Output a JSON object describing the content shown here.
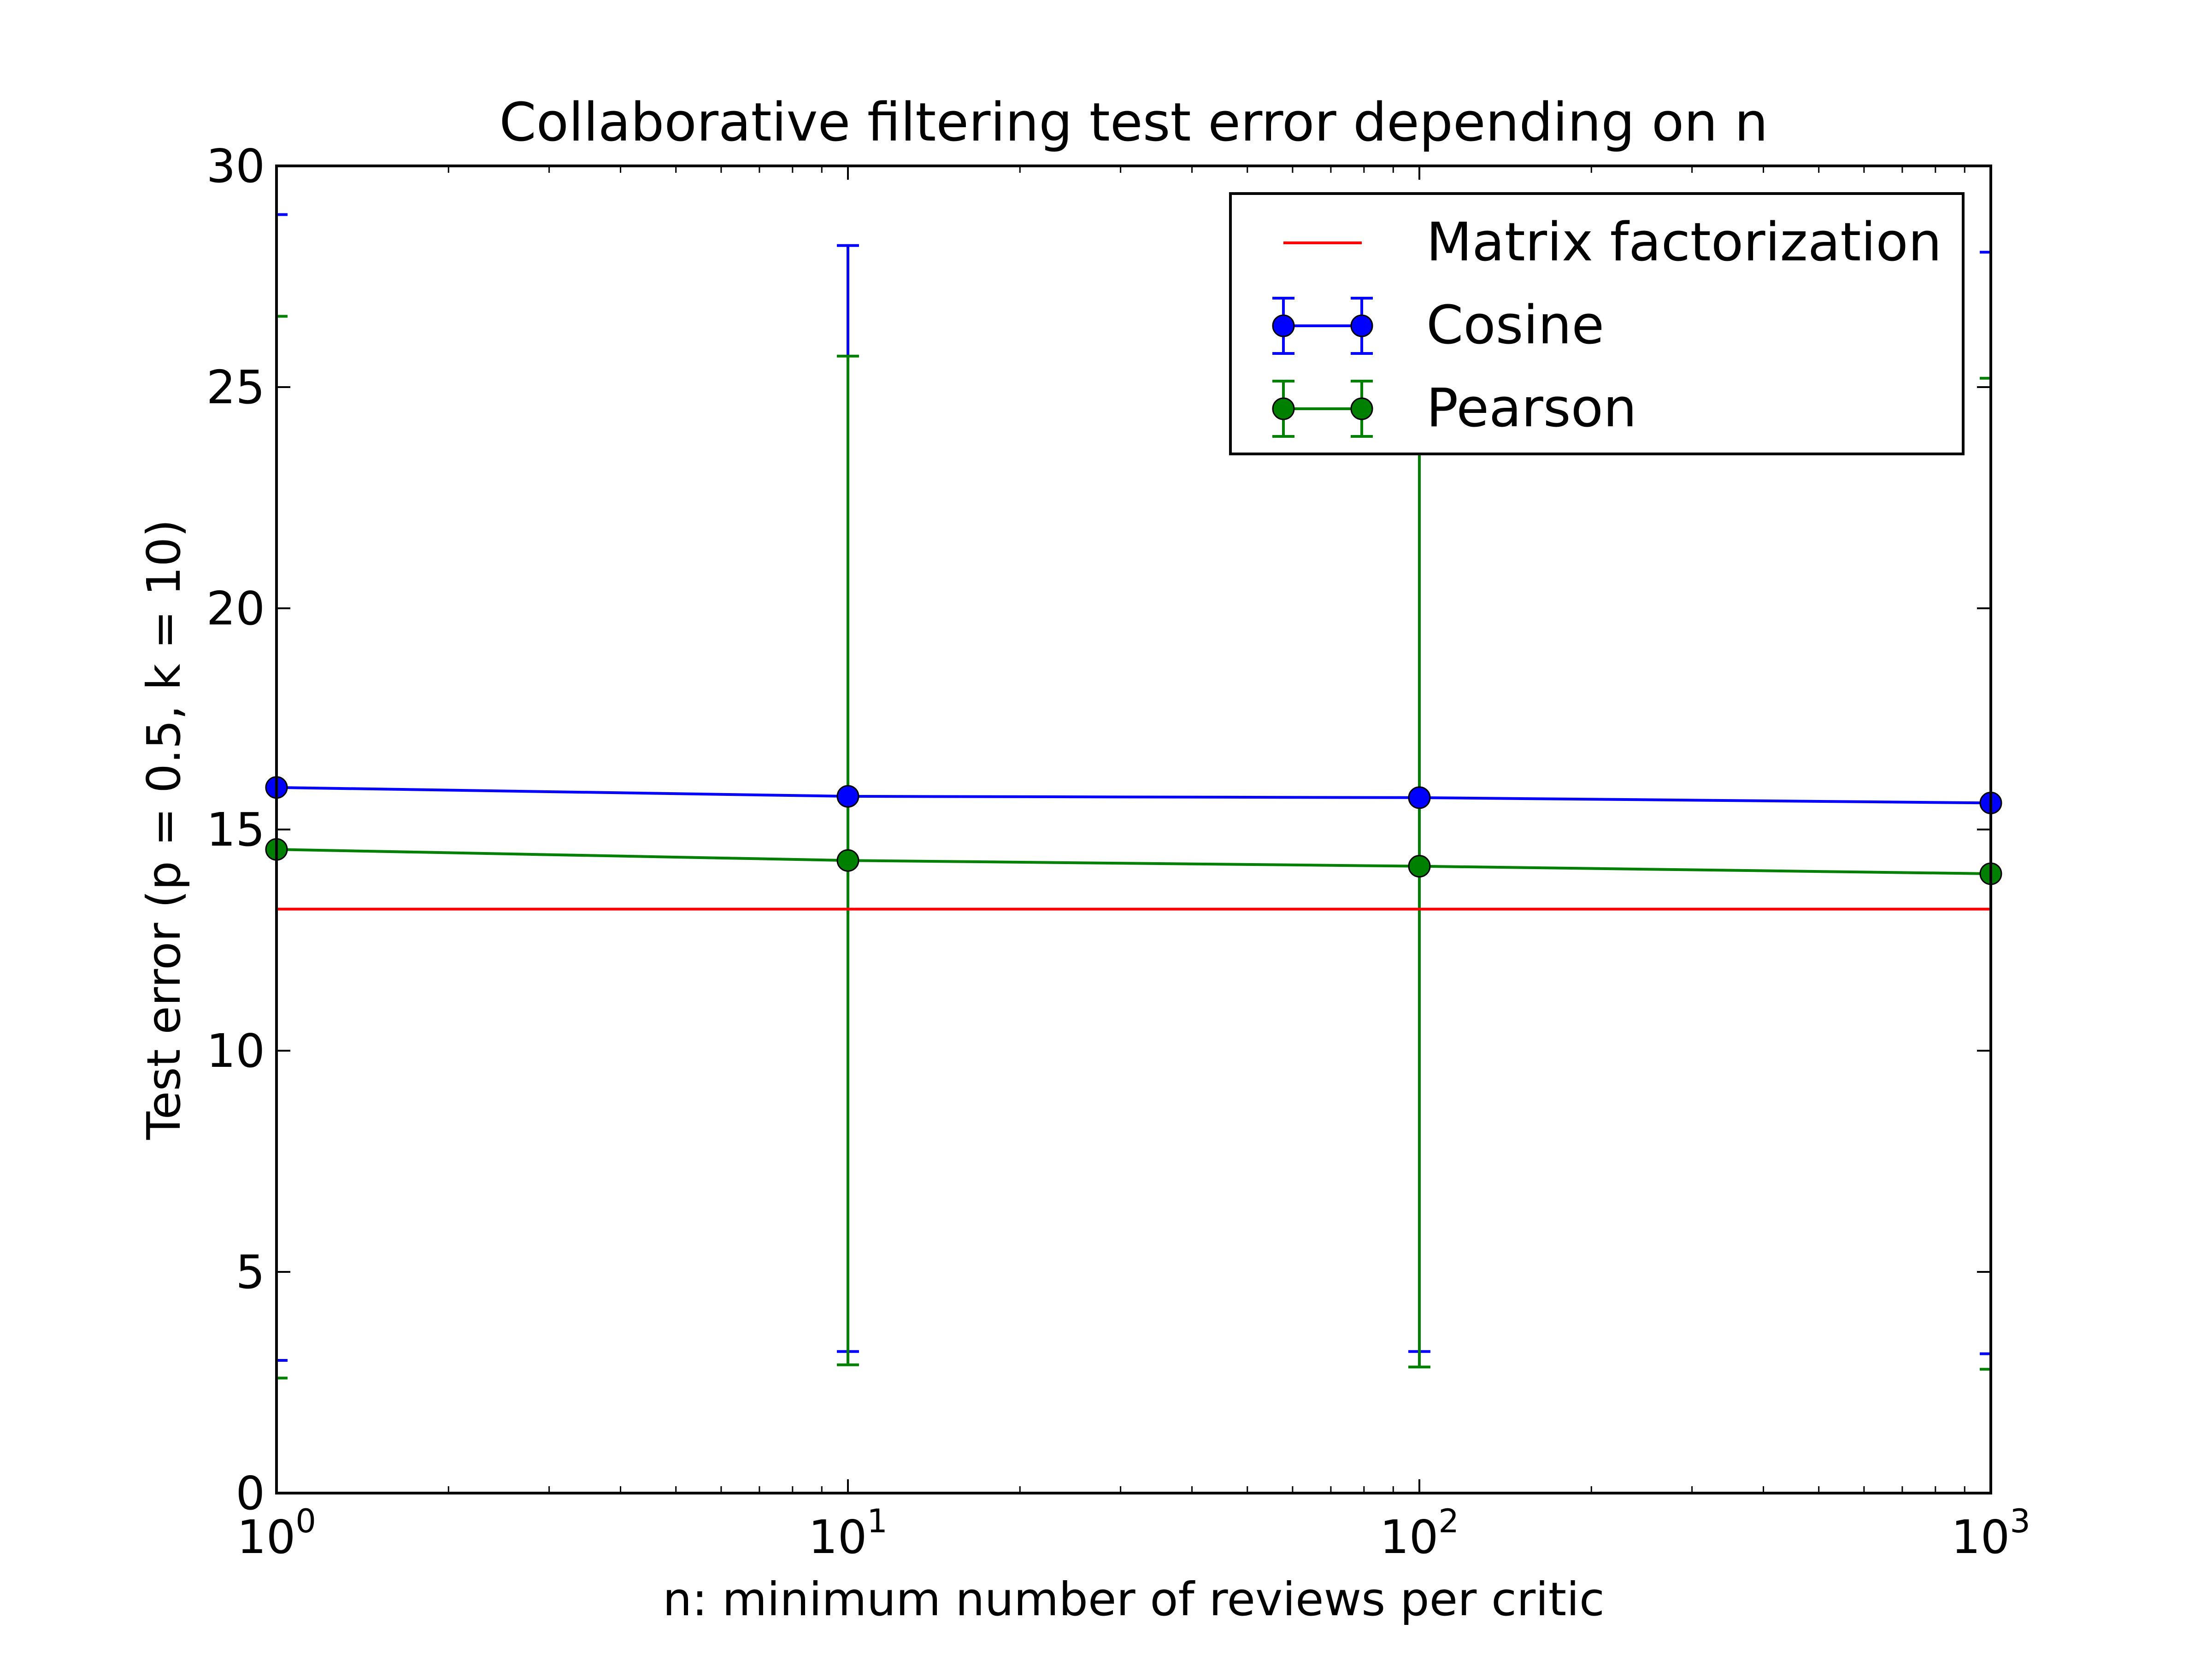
{
  "chart_data": {
    "type": "line",
    "title": "Collaborative filtering test error depending on n",
    "xlabel": "n: minimum number of reviews per critic",
    "ylabel": "Test error (p = 0.5, k = 10)",
    "xscale": "log",
    "xlim": [
      1,
      1000
    ],
    "ylim": [
      0,
      30
    ],
    "grid": false,
    "legend_position": "top-right",
    "x_ticks": [
      {
        "value": 1,
        "base": "10",
        "exp": "0"
      },
      {
        "value": 10,
        "base": "10",
        "exp": "1"
      },
      {
        "value": 100,
        "base": "10",
        "exp": "2"
      },
      {
        "value": 1000,
        "base": "10",
        "exp": "3"
      }
    ],
    "y_ticks": [
      0,
      5,
      10,
      15,
      20,
      25,
      30
    ],
    "x": [
      1,
      10,
      100,
      1000
    ],
    "series": [
      {
        "name": "Matrix factorization",
        "type": "hline",
        "color": "#ff0000",
        "y": 13.2
      },
      {
        "name": "Cosine",
        "color": "#0000ff",
        "values": [
          15.95,
          15.75,
          15.72,
          15.6
        ],
        "err_low": [
          3.0,
          3.2,
          3.2,
          3.15
        ],
        "err_high": [
          28.9,
          28.2,
          28.2,
          28.05
        ]
      },
      {
        "name": "Pearson",
        "color": "#008000",
        "values": [
          14.55,
          14.3,
          14.17,
          14.0
        ],
        "err_low": [
          2.6,
          2.9,
          2.85,
          2.8
        ],
        "err_high": [
          26.6,
          25.7,
          25.7,
          25.2
        ]
      }
    ]
  }
}
